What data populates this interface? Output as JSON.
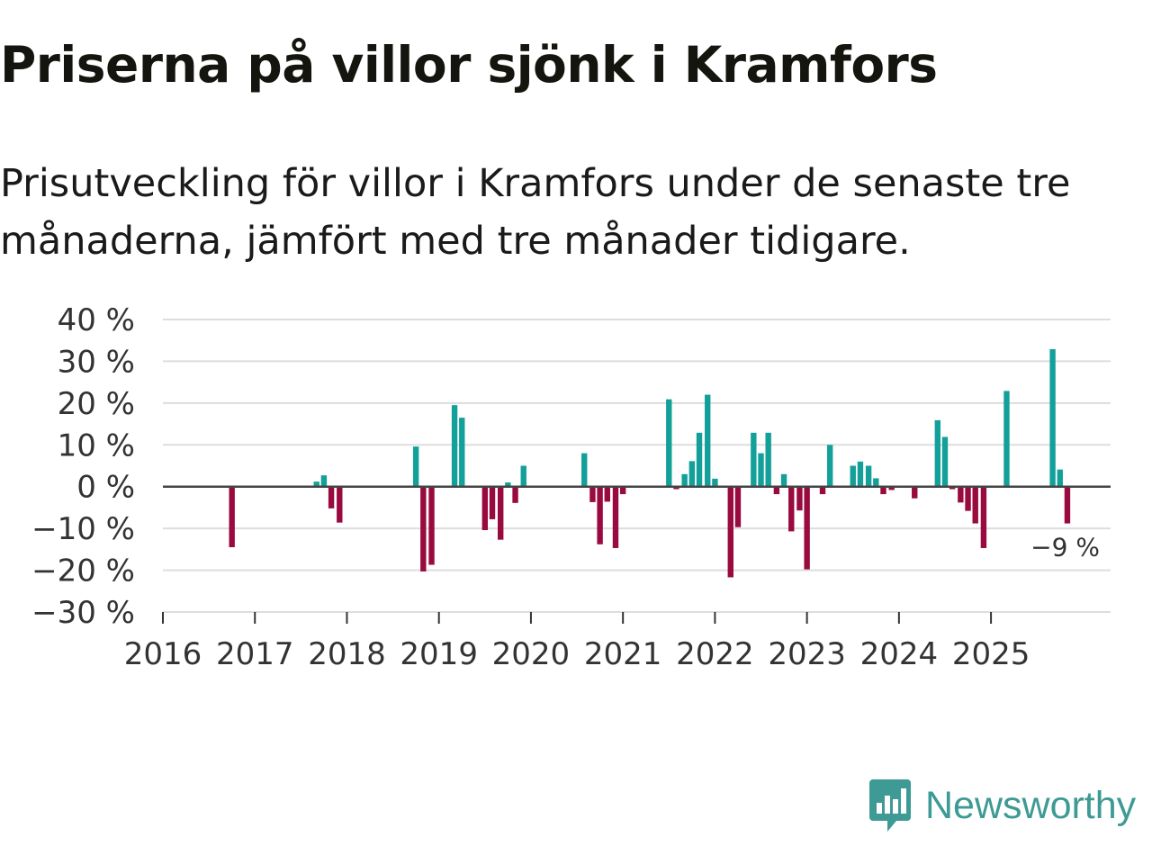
{
  "title": "Priserna på villor sjönk i Kramfors",
  "subtitle": "Prisutveckling för villor i Kramfors under de senaste tre månaderna, jämfört med tre månader tidigare.",
  "brand": {
    "name": "Newsworthy",
    "color": "#3e9a94",
    "icon": "newsworthy-bar-chart-icon"
  },
  "colors": {
    "positive": "#14a09a",
    "negative": "#990a3e",
    "grid": "#dddddd",
    "zero": "#444444"
  },
  "chart_data": {
    "type": "bar",
    "title": "Priserna på villor sjönk i Kramfors",
    "xlabel": "",
    "ylabel": "",
    "ylim": [
      -30,
      40
    ],
    "yticks": [
      40,
      30,
      20,
      10,
      0,
      -10,
      -20,
      -30
    ],
    "ytick_labels": [
      "40 %",
      "30 %",
      "20 %",
      "10 %",
      "0 %",
      "−10 %",
      "−20 %",
      "−30 %"
    ],
    "xlim": [
      2016.0,
      2026.3
    ],
    "xticks": [
      2016,
      2017,
      2018,
      2019,
      2020,
      2021,
      2022,
      2023,
      2024,
      2025
    ],
    "xtick_labels": [
      "2016",
      "2017",
      "2018",
      "2019",
      "2020",
      "2021",
      "2022",
      "2023",
      "2024",
      "2025"
    ],
    "bar_width_months": 0.75,
    "series": [
      {
        "name": "Prisutveckling",
        "unit": "%",
        "points": [
          {
            "t": 2016.75,
            "v": -14.5
          },
          {
            "t": 2017.67,
            "v": 1.2
          },
          {
            "t": 2017.75,
            "v": 2.7
          },
          {
            "t": 2017.83,
            "v": -5.2
          },
          {
            "t": 2017.92,
            "v": -8.6
          },
          {
            "t": 2018.75,
            "v": 9.6
          },
          {
            "t": 2018.83,
            "v": -20.3
          },
          {
            "t": 2018.92,
            "v": -18.7
          },
          {
            "t": 2019.17,
            "v": 19.5
          },
          {
            "t": 2019.25,
            "v": 16.5
          },
          {
            "t": 2019.5,
            "v": -10.4
          },
          {
            "t": 2019.58,
            "v": -7.8
          },
          {
            "t": 2019.67,
            "v": -12.7
          },
          {
            "t": 2019.75,
            "v": 1.0
          },
          {
            "t": 2019.83,
            "v": -3.9
          },
          {
            "t": 2019.92,
            "v": 5.0
          },
          {
            "t": 2020.58,
            "v": 8.0
          },
          {
            "t": 2020.67,
            "v": -3.7
          },
          {
            "t": 2020.75,
            "v": -13.8
          },
          {
            "t": 2020.83,
            "v": -3.6
          },
          {
            "t": 2020.92,
            "v": -14.7
          },
          {
            "t": 2021.0,
            "v": -1.8
          },
          {
            "t": 2021.5,
            "v": 20.9
          },
          {
            "t": 2021.58,
            "v": -0.6
          },
          {
            "t": 2021.67,
            "v": 3.0
          },
          {
            "t": 2021.75,
            "v": 6.1
          },
          {
            "t": 2021.83,
            "v": 12.9
          },
          {
            "t": 2021.92,
            "v": 22.0
          },
          {
            "t": 2022.0,
            "v": 1.9
          },
          {
            "t": 2022.17,
            "v": -21.7
          },
          {
            "t": 2022.25,
            "v": -9.7
          },
          {
            "t": 2022.42,
            "v": 12.9
          },
          {
            "t": 2022.5,
            "v": 8.0
          },
          {
            "t": 2022.58,
            "v": 12.9
          },
          {
            "t": 2022.67,
            "v": -1.8
          },
          {
            "t": 2022.75,
            "v": 3.0
          },
          {
            "t": 2022.83,
            "v": -10.7
          },
          {
            "t": 2022.92,
            "v": -5.7
          },
          {
            "t": 2023.0,
            "v": -19.8
          },
          {
            "t": 2023.17,
            "v": -1.8
          },
          {
            "t": 2023.25,
            "v": 10.0
          },
          {
            "t": 2023.5,
            "v": 5.0
          },
          {
            "t": 2023.58,
            "v": 6.0
          },
          {
            "t": 2023.67,
            "v": 5.0
          },
          {
            "t": 2023.75,
            "v": 2.0
          },
          {
            "t": 2023.83,
            "v": -1.8
          },
          {
            "t": 2023.92,
            "v": -0.8
          },
          {
            "t": 2024.17,
            "v": -2.8
          },
          {
            "t": 2024.42,
            "v": 15.9
          },
          {
            "t": 2024.5,
            "v": 11.9
          },
          {
            "t": 2024.58,
            "v": -0.6
          },
          {
            "t": 2024.67,
            "v": -3.8
          },
          {
            "t": 2024.75,
            "v": -5.8
          },
          {
            "t": 2024.83,
            "v": -8.8
          },
          {
            "t": 2024.92,
            "v": -14.7
          },
          {
            "t": 2025.17,
            "v": 22.9
          },
          {
            "t": 2025.67,
            "v": 32.9
          },
          {
            "t": 2025.75,
            "v": 4.1
          },
          {
            "t": 2025.83,
            "v": -8.8
          }
        ]
      }
    ],
    "annotation": {
      "label": "−9 %",
      "t": 2025.83,
      "v": -8.8,
      "placement": "below-left of last bar"
    }
  }
}
